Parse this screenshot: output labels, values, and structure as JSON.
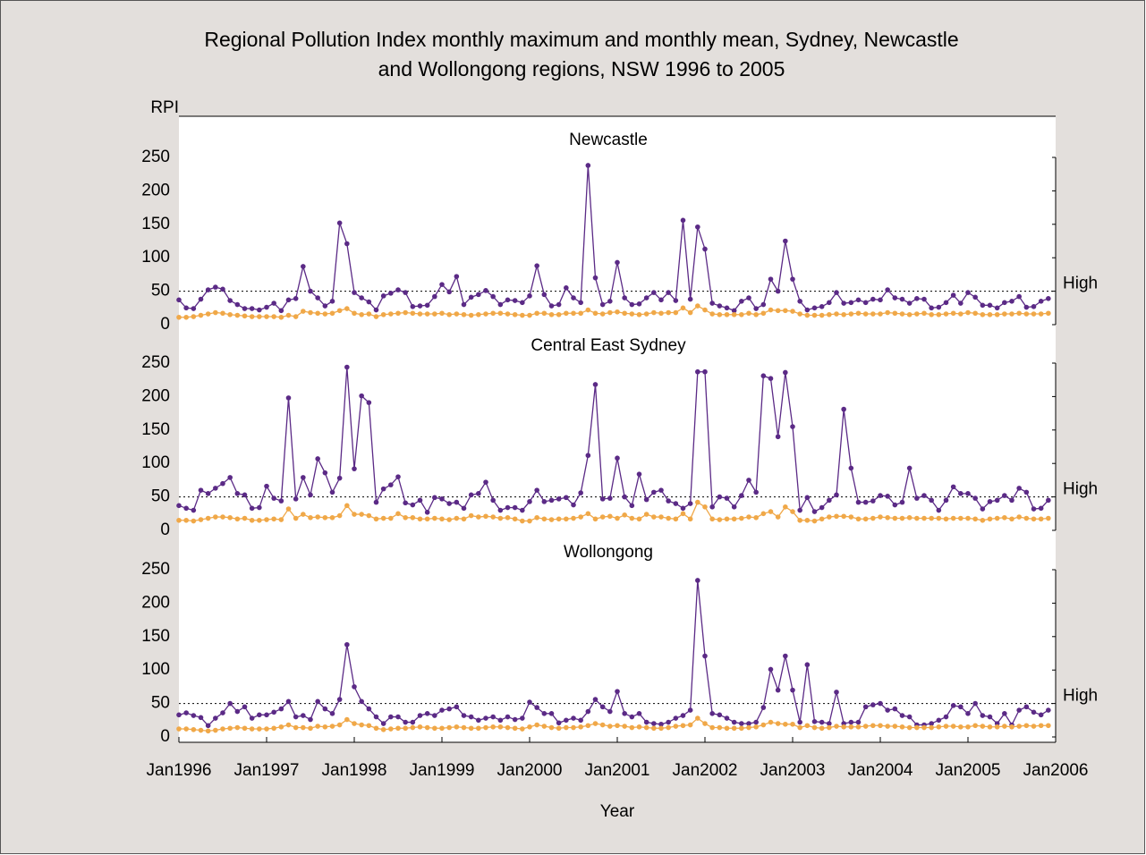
{
  "chart_data": {
    "type": "line",
    "title": [
      "Regional Pollution Index monthly maximum and monthly mean, Sydney, Newcastle",
      "and Wollongong regions, NSW 1996 to 2005"
    ],
    "ylabel": "RPI",
    "xlabel": "Year",
    "x": [
      "1996-01",
      "1996-02",
      "1996-03",
      "1996-04",
      "1996-05",
      "1996-06",
      "1996-07",
      "1996-08",
      "1996-09",
      "1996-10",
      "1996-11",
      "1996-12",
      "1997-01",
      "1997-02",
      "1997-03",
      "1997-04",
      "1997-05",
      "1997-06",
      "1997-07",
      "1997-08",
      "1997-09",
      "1997-10",
      "1997-11",
      "1997-12",
      "1998-01",
      "1998-02",
      "1998-03",
      "1998-04",
      "1998-05",
      "1998-06",
      "1998-07",
      "1998-08",
      "1998-09",
      "1998-10",
      "1998-11",
      "1998-12",
      "1999-01",
      "1999-02",
      "1999-03",
      "1999-04",
      "1999-05",
      "1999-06",
      "1999-07",
      "1999-08",
      "1999-09",
      "1999-10",
      "1999-11",
      "1999-12",
      "2000-01",
      "2000-02",
      "2000-03",
      "2000-04",
      "2000-05",
      "2000-06",
      "2000-07",
      "2000-08",
      "2000-09",
      "2000-10",
      "2000-11",
      "2000-12",
      "2001-01",
      "2001-02",
      "2001-03",
      "2001-04",
      "2001-05",
      "2001-06",
      "2001-07",
      "2001-08",
      "2001-09",
      "2001-10",
      "2001-11",
      "2001-12",
      "2002-01",
      "2002-02",
      "2002-03",
      "2002-04",
      "2002-05",
      "2002-06",
      "2002-07",
      "2002-08",
      "2002-09",
      "2002-10",
      "2002-11",
      "2002-12",
      "2003-01",
      "2003-02",
      "2003-03",
      "2003-04",
      "2003-05",
      "2003-06",
      "2003-07",
      "2003-08",
      "2003-09",
      "2003-10",
      "2003-11",
      "2003-12",
      "2004-01",
      "2004-02",
      "2004-03",
      "2004-04",
      "2004-05",
      "2004-06",
      "2004-07",
      "2004-08",
      "2004-09",
      "2004-10",
      "2004-11",
      "2004-12",
      "2005-01",
      "2005-02",
      "2005-03",
      "2005-04",
      "2005-05",
      "2005-06",
      "2005-07",
      "2005-08",
      "2005-09",
      "2005-10",
      "2005-11",
      "2005-12"
    ],
    "xlim": [
      "1996-01",
      "2006-01"
    ],
    "xticks": [
      {
        "value": "1996-01",
        "label": "Jan1996"
      },
      {
        "value": "1997-01",
        "label": "Jan1997"
      },
      {
        "value": "1998-01",
        "label": "Jan1998"
      },
      {
        "value": "1999-01",
        "label": "Jan1999"
      },
      {
        "value": "2000-01",
        "label": "Jan2000"
      },
      {
        "value": "2001-01",
        "label": "Jan2001"
      },
      {
        "value": "2002-01",
        "label": "Jan2002"
      },
      {
        "value": "2003-01",
        "label": "Jan2003"
      },
      {
        "value": "2004-01",
        "label": "Jan2004"
      },
      {
        "value": "2005-01",
        "label": "Jan2005"
      },
      {
        "value": "2006-01",
        "label": "Jan2006"
      }
    ],
    "panels": [
      {
        "title": "Newcastle",
        "ylim": [
          0,
          250
        ],
        "yticks": [
          0,
          50,
          100,
          150,
          200,
          250
        ],
        "threshold": {
          "value": 50,
          "label": "High"
        },
        "series": [
          {
            "color": "#5b2a86",
            "values": [
              37,
              25,
              24,
              38,
              52,
              56,
              53,
              36,
              30,
              24,
              24,
              22,
              26,
              32,
              21,
              37,
              39,
              87,
              50,
              40,
              28,
              35,
              152,
              121,
              48,
              40,
              34,
              22,
              43,
              47,
              52,
              48,
              27,
              28,
              29,
              42,
              60,
              49,
              72,
              30,
              41,
              45,
              51,
              42,
              30,
              37,
              36,
              33,
              43,
              88,
              45,
              28,
              30,
              55,
              40,
              33,
              238,
              70,
              30,
              35,
              93,
              40,
              30,
              31,
              40,
              48,
              37,
              48,
              36,
              156,
              38,
              146,
              113,
              32,
              28,
              25,
              21,
              35,
              40,
              24,
              30,
              68,
              50,
              125,
              68,
              35,
              22,
              25,
              27,
              33,
              48,
              32,
              33,
              37,
              33,
              38,
              37,
              52,
              40,
              38,
              32,
              39,
              38,
              25,
              26,
              33,
              44,
              32,
              48,
              41,
              29,
              29,
              25,
              33,
              35,
              42,
              26,
              27,
              35,
              39
            ]
          },
          {
            "color": "#f0a848",
            "values": [
              11,
              11,
              12,
              14,
              16,
              18,
              17,
              15,
              14,
              13,
              12,
              12,
              12,
              12,
              11,
              14,
              12,
              20,
              18,
              17,
              16,
              17,
              21,
              24,
              17,
              15,
              16,
              12,
              15,
              16,
              17,
              18,
              17,
              16,
              16,
              16,
              17,
              15,
              16,
              15,
              14,
              15,
              16,
              17,
              17,
              16,
              15,
              14,
              14,
              17,
              17,
              15,
              15,
              17,
              17,
              17,
              22,
              17,
              16,
              18,
              19,
              17,
              16,
              15,
              16,
              18,
              17,
              18,
              18,
              25,
              18,
              28,
              22,
              16,
              15,
              15,
              15,
              15,
              17,
              15,
              17,
              22,
              21,
              21,
              20,
              16,
              14,
              14,
              14,
              15,
              16,
              15,
              16,
              17,
              16,
              16,
              16,
              18,
              17,
              16,
              15,
              16,
              17,
              15,
              15,
              16,
              17,
              16,
              18,
              17,
              15,
              15,
              15,
              16,
              16,
              17,
              16,
              16,
              16,
              17
            ]
          }
        ]
      },
      {
        "title": "Central East Sydney",
        "ylim": [
          0,
          250
        ],
        "yticks": [
          0,
          50,
          100,
          150,
          200,
          250
        ],
        "threshold": {
          "value": 50,
          "label": "High"
        },
        "series": [
          {
            "color": "#5b2a86",
            "values": [
              37,
              33,
              30,
              60,
              55,
              63,
              70,
              79,
              55,
              53,
              33,
              34,
              66,
              48,
              44,
              198,
              47,
              79,
              53,
              107,
              86,
              57,
              78,
              244,
              92,
              201,
              191,
              42,
              62,
              68,
              80,
              41,
              38,
              45,
              27,
              49,
              47,
              40,
              42,
              33,
              53,
              55,
              72,
              45,
              30,
              34,
              34,
              30,
              43,
              60,
              43,
              45,
              47,
              49,
              38,
              56,
              112,
              218,
              47,
              48,
              108,
              50,
              37,
              84,
              46,
              57,
              60,
              44,
              40,
              33,
              40,
              237,
              237,
              35,
              50,
              48,
              35,
              52,
              75,
              57,
              231,
              227,
              140,
              236,
              155,
              30,
              49,
              28,
              34,
              45,
              53,
              181,
              93,
              42,
              42,
              44,
              52,
              51,
              38,
              42,
              93,
              48,
              52,
              45,
              30,
              45,
              65,
              55,
              55,
              48,
              32,
              43,
              45,
              52,
              45,
              63,
              57,
              32,
              33,
              45
            ]
          },
          {
            "color": "#f0a848",
            "values": [
              15,
              15,
              14,
              16,
              18,
              20,
              20,
              19,
              17,
              18,
              15,
              15,
              16,
              17,
              16,
              32,
              18,
              24,
              19,
              20,
              19,
              19,
              22,
              37,
              24,
              24,
              22,
              17,
              18,
              18,
              25,
              19,
              19,
              17,
              17,
              18,
              17,
              16,
              18,
              17,
              22,
              20,
              21,
              20,
              18,
              19,
              17,
              14,
              14,
              19,
              17,
              16,
              17,
              17,
              18,
              20,
              25,
              17,
              20,
              21,
              18,
              23,
              18,
              17,
              24,
              20,
              20,
              18,
              17,
              25,
              17,
              42,
              35,
              17,
              16,
              17,
              17,
              18,
              20,
              19,
              25,
              28,
              20,
              35,
              28,
              15,
              15,
              14,
              17,
              20,
              21,
              21,
              20,
              17,
              17,
              18,
              20,
              19,
              18,
              18,
              19,
              18,
              18,
              18,
              18,
              17,
              18,
              18,
              18,
              17,
              15,
              17,
              18,
              19,
              17,
              20,
              18,
              17,
              17,
              18
            ]
          }
        ]
      },
      {
        "title": "Wollongong",
        "ylim": [
          0,
          250
        ],
        "yticks": [
          0,
          50,
          100,
          150,
          200,
          250
        ],
        "threshold": {
          "value": 50,
          "label": "High"
        },
        "series": [
          {
            "color": "#5b2a86",
            "values": [
              33,
              36,
              32,
              29,
              17,
              28,
              36,
              50,
              38,
              45,
              28,
              33,
              33,
              37,
              42,
              53,
              30,
              32,
              26,
              53,
              42,
              35,
              56,
              138,
              75,
              53,
              42,
              30,
              20,
              30,
              30,
              22,
              22,
              32,
              35,
              32,
              40,
              42,
              45,
              32,
              30,
              25,
              28,
              30,
              25,
              30,
              26,
              28,
              52,
              44,
              35,
              35,
              21,
              25,
              28,
              25,
              38,
              56,
              45,
              38,
              68,
              35,
              30,
              35,
              22,
              20,
              19,
              22,
              28,
              32,
              40,
              234,
              121,
              35,
              33,
              28,
              22,
              20,
              20,
              22,
              44,
              101,
              70,
              121,
              70,
              22,
              108,
              23,
              22,
              20,
              67,
              20,
              22,
              22,
              45,
              48,
              50,
              40,
              42,
              32,
              30,
              18,
              18,
              20,
              25,
              30,
              47,
              45,
              35,
              50,
              32,
              30,
              20,
              35,
              18,
              40,
              45,
              37,
              33,
              40
            ]
          },
          {
            "color": "#f0a848",
            "values": [
              12,
              12,
              11,
              10,
              9,
              10,
              12,
              13,
              14,
              13,
              12,
              12,
              12,
              13,
              15,
              18,
              14,
              14,
              13,
              16,
              15,
              16,
              18,
              26,
              20,
              18,
              17,
              13,
              11,
              12,
              13,
              13,
              14,
              15,
              14,
              13,
              13,
              14,
              15,
              14,
              13,
              13,
              14,
              15,
              15,
              14,
              13,
              12,
              15,
              18,
              16,
              14,
              13,
              14,
              14,
              15,
              17,
              20,
              18,
              16,
              17,
              16,
              14,
              15,
              14,
              13,
              13,
              14,
              16,
              17,
              18,
              28,
              20,
              14,
              14,
              13,
              13,
              13,
              14,
              15,
              18,
              22,
              20,
              19,
              19,
              14,
              17,
              14,
              13,
              14,
              16,
              15,
              15,
              15,
              16,
              17,
              17,
              16,
              16,
              15,
              14,
              14,
              14,
              14,
              15,
              16,
              16,
              15,
              15,
              17,
              16,
              15,
              15,
              16,
              15,
              16,
              17,
              16,
              17,
              17
            ]
          }
        ]
      }
    ]
  }
}
